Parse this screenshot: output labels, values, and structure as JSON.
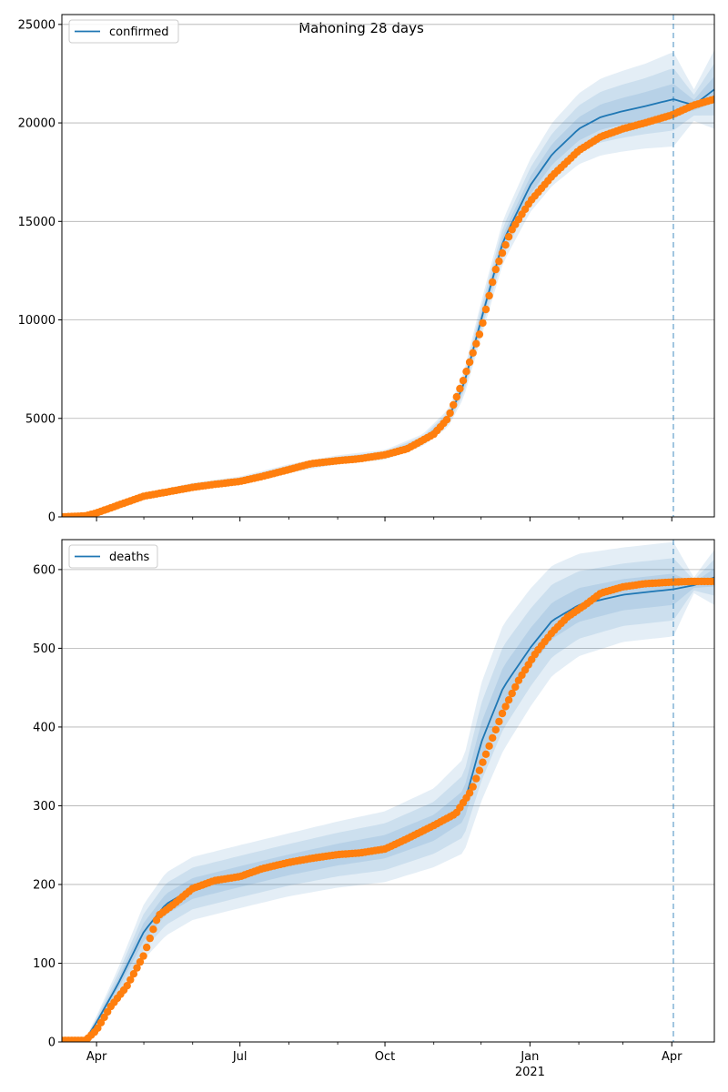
{
  "figure": {
    "title": "Mahoning 28 days",
    "x_tick_labels": [
      "Apr",
      "Jul",
      "Oct",
      "Jan",
      "Apr"
    ],
    "x_year_label": "2021"
  },
  "colors": {
    "model": "#1f77b4",
    "observed": "#ff7f0e",
    "band": "#1f77b4",
    "grid": "#b0b0b0",
    "cutoff": "#1f77b4"
  },
  "chart_data": [
    {
      "type": "line",
      "panel": "top",
      "legend": "confirmed",
      "legend_position": "upper-left",
      "grid": "horizontal",
      "x_range": [
        "2020-03-10",
        "2021-04-28"
      ],
      "ylim": [
        0,
        25500
      ],
      "yticks": [
        0,
        5000,
        10000,
        15000,
        20000,
        25000
      ],
      "cutoff_date": "2021-04-02",
      "model": {
        "x": [
          "2020-03-10",
          "2020-04-01",
          "2020-05-01",
          "2020-06-01",
          "2020-07-01",
          "2020-08-01",
          "2020-09-01",
          "2020-10-01",
          "2020-10-25",
          "2020-11-10",
          "2020-11-20",
          "2020-12-01",
          "2020-12-15",
          "2021-01-01",
          "2021-01-15",
          "2021-02-01",
          "2021-02-15",
          "2021-03-01",
          "2021-03-15",
          "2021-04-02",
          "2021-04-15",
          "2021-04-28"
        ],
        "y": [
          0,
          250,
          1050,
          1550,
          1850,
          2450,
          2900,
          3150,
          3900,
          5000,
          6700,
          10000,
          14000,
          16800,
          18400,
          19700,
          20300,
          20600,
          20850,
          21200,
          20900,
          21700
        ],
        "band_half_width": [
          0,
          60,
          150,
          180,
          200,
          220,
          230,
          250,
          300,
          450,
          650,
          900,
          1100,
          1350,
          1600,
          1800,
          1950,
          2050,
          2150,
          2400,
          800,
          2000
        ]
      },
      "observed": {
        "x": [
          "2020-03-10",
          "2020-03-25",
          "2020-04-01",
          "2020-04-15",
          "2020-05-01",
          "2020-05-15",
          "2020-06-01",
          "2020-06-15",
          "2020-07-01",
          "2020-07-15",
          "2020-08-01",
          "2020-08-15",
          "2020-09-01",
          "2020-09-15",
          "2020-10-01",
          "2020-10-15",
          "2020-11-01",
          "2020-11-10",
          "2020-11-20",
          "2020-12-01",
          "2020-12-10",
          "2020-12-20",
          "2021-01-01",
          "2021-01-15",
          "2021-02-01",
          "2021-02-15",
          "2021-03-01",
          "2021-03-15",
          "2021-04-01",
          "2021-04-15",
          "2021-04-28"
        ],
        "y": [
          0,
          50,
          200,
          600,
          1050,
          1250,
          1500,
          1650,
          1800,
          2050,
          2400,
          2700,
          2850,
          2950,
          3150,
          3450,
          4200,
          5000,
          7000,
          9500,
          12500,
          14500,
          16000,
          17300,
          18600,
          19300,
          19700,
          20000,
          20400,
          20900,
          21200
        ]
      }
    },
    {
      "type": "line",
      "panel": "bottom",
      "legend": "deaths",
      "legend_position": "upper-left",
      "grid": "horizontal",
      "x_range": [
        "2020-03-10",
        "2021-04-28"
      ],
      "ylim": [
        0,
        638
      ],
      "yticks": [
        0,
        100,
        200,
        300,
        400,
        500,
        600
      ],
      "cutoff_date": "2021-04-02",
      "model": {
        "x": [
          "2020-03-10",
          "2020-03-25",
          "2020-04-01",
          "2020-04-15",
          "2020-05-01",
          "2020-05-15",
          "2020-06-01",
          "2020-07-01",
          "2020-08-01",
          "2020-09-01",
          "2020-10-01",
          "2020-11-01",
          "2020-11-20",
          "2020-12-01",
          "2020-12-15",
          "2021-01-01",
          "2021-01-15",
          "2021-02-01",
          "2021-03-01",
          "2021-04-02",
          "2021-04-15",
          "2021-04-28"
        ],
        "y": [
          0,
          3,
          25,
          75,
          140,
          175,
          195,
          210,
          225,
          238,
          248,
          272,
          300,
          380,
          450,
          500,
          535,
          555,
          568,
          575,
          580,
          590
        ],
        "band_half_width": [
          0,
          2,
          8,
          20,
          35,
          40,
          40,
          40,
          40,
          42,
          45,
          50,
          60,
          75,
          80,
          75,
          70,
          65,
          60,
          60,
          10,
          35
        ]
      },
      "observed": {
        "x": [
          "2020-03-10",
          "2020-03-25",
          "2020-04-01",
          "2020-04-10",
          "2020-04-20",
          "2020-05-01",
          "2020-05-10",
          "2020-05-20",
          "2020-06-01",
          "2020-06-15",
          "2020-07-01",
          "2020-07-15",
          "2020-08-01",
          "2020-08-15",
          "2020-09-01",
          "2020-09-15",
          "2020-10-01",
          "2020-10-15",
          "2020-11-01",
          "2020-11-15",
          "2020-11-25",
          "2020-12-05",
          "2020-12-15",
          "2020-12-25",
          "2021-01-05",
          "2021-01-15",
          "2021-01-25",
          "2021-02-05",
          "2021-02-15",
          "2021-03-01",
          "2021-03-15",
          "2021-04-01",
          "2021-04-15",
          "2021-04-28"
        ],
        "y": [
          2,
          2,
          15,
          45,
          70,
          110,
          160,
          175,
          195,
          205,
          210,
          220,
          228,
          233,
          238,
          240,
          245,
          258,
          275,
          290,
          320,
          370,
          420,
          460,
          495,
          520,
          540,
          555,
          570,
          578,
          582,
          584,
          585,
          585
        ]
      }
    }
  ]
}
